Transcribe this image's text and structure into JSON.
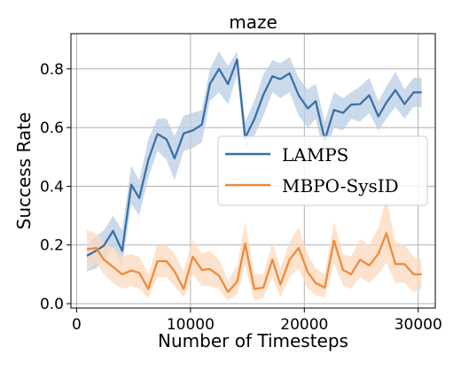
{
  "chart_data": {
    "type": "line",
    "title": "maze",
    "xlabel": "Number of Timesteps",
    "ylabel": "Success Rate",
    "xlim": [
      -500,
      31500
    ],
    "ylim": [
      -0.015,
      0.92
    ],
    "xticks": [
      0,
      10000,
      20000,
      30000
    ],
    "yticks": [
      0.0,
      0.2,
      0.4,
      0.6,
      0.8
    ],
    "xtick_labels": [
      "0",
      "10000",
      "20000",
      "30000"
    ],
    "ytick_labels": [
      "0.0",
      "0.2",
      "0.4",
      "0.6",
      "0.8"
    ],
    "grid": true,
    "legend_position": "center-right",
    "series": [
      {
        "name": "LAMPS",
        "color": "#3a70a8",
        "band_color": "#b9cde3",
        "x": [
          900,
          1700,
          2400,
          3200,
          4000,
          4800,
          5500,
          6300,
          7100,
          7900,
          8600,
          9400,
          10200,
          11000,
          11700,
          12500,
          13300,
          14100,
          14800,
          15600,
          16400,
          17200,
          17900,
          18700,
          19500,
          20300,
          21000,
          21800,
          22600,
          23400,
          24100,
          24900,
          25700,
          26500,
          27200,
          28000,
          28800,
          29600,
          30300
        ],
        "y": [
          0.163,
          0.18,
          0.198,
          0.248,
          0.18,
          0.405,
          0.36,
          0.49,
          0.578,
          0.56,
          0.495,
          0.58,
          0.59,
          0.61,
          0.748,
          0.8,
          0.748,
          0.832,
          0.565,
          0.628,
          0.712,
          0.775,
          0.765,
          0.785,
          0.71,
          0.665,
          0.69,
          0.558,
          0.66,
          0.65,
          0.678,
          0.68,
          0.71,
          0.638,
          0.685,
          0.728,
          0.68,
          0.72,
          0.72
        ],
        "lower": [
          0.11,
          0.12,
          0.15,
          0.19,
          0.13,
          0.34,
          0.3,
          0.43,
          0.52,
          0.49,
          0.42,
          0.52,
          0.53,
          0.55,
          0.69,
          0.72,
          0.68,
          0.78,
          0.52,
          0.57,
          0.64,
          0.72,
          0.7,
          0.72,
          0.64,
          0.6,
          0.63,
          0.5,
          0.6,
          0.59,
          0.63,
          0.62,
          0.65,
          0.59,
          0.63,
          0.67,
          0.63,
          0.67,
          0.67
        ],
        "upper": [
          0.2,
          0.23,
          0.25,
          0.3,
          0.25,
          0.47,
          0.42,
          0.56,
          0.63,
          0.63,
          0.57,
          0.64,
          0.65,
          0.66,
          0.8,
          0.86,
          0.81,
          0.86,
          0.62,
          0.69,
          0.78,
          0.83,
          0.82,
          0.84,
          0.77,
          0.73,
          0.75,
          0.62,
          0.72,
          0.7,
          0.72,
          0.74,
          0.77,
          0.69,
          0.74,
          0.79,
          0.73,
          0.77,
          0.77
        ]
      },
      {
        "name": "MBPO-SysID",
        "color": "#f08a3a",
        "band_color": "#fcd9bd",
        "x": [
          900,
          1700,
          2400,
          3200,
          4000,
          4800,
          5500,
          6300,
          7100,
          7900,
          8600,
          9400,
          10200,
          11000,
          11700,
          12500,
          13300,
          14100,
          14800,
          15600,
          16400,
          17200,
          17900,
          18700,
          19500,
          20300,
          21000,
          21800,
          22600,
          23400,
          24100,
          24900,
          25700,
          26500,
          27200,
          28000,
          28800,
          29600,
          30300
        ],
        "y": [
          0.185,
          0.19,
          0.15,
          0.125,
          0.1,
          0.113,
          0.105,
          0.05,
          0.145,
          0.145,
          0.11,
          0.05,
          0.16,
          0.115,
          0.118,
          0.095,
          0.04,
          0.075,
          0.205,
          0.05,
          0.055,
          0.15,
          0.065,
          0.15,
          0.19,
          0.107,
          0.07,
          0.055,
          0.215,
          0.115,
          0.1,
          0.15,
          0.13,
          0.17,
          0.24,
          0.135,
          0.135,
          0.1,
          0.1
        ],
        "lower": [
          0.11,
          0.14,
          0.1,
          0.07,
          0.05,
          0.06,
          0.05,
          0.02,
          0.09,
          0.09,
          0.06,
          0.02,
          0.1,
          0.06,
          0.06,
          0.05,
          0.01,
          0.03,
          0.13,
          0.01,
          0.02,
          0.09,
          0.02,
          0.09,
          0.12,
          0.05,
          0.03,
          0.02,
          0.14,
          0.06,
          0.05,
          0.09,
          0.07,
          0.1,
          0.14,
          0.07,
          0.07,
          0.04,
          0.05
        ],
        "upper": [
          0.25,
          0.24,
          0.21,
          0.19,
          0.16,
          0.17,
          0.16,
          0.1,
          0.2,
          0.2,
          0.17,
          0.11,
          0.22,
          0.17,
          0.18,
          0.15,
          0.08,
          0.13,
          0.28,
          0.1,
          0.1,
          0.21,
          0.12,
          0.21,
          0.26,
          0.17,
          0.12,
          0.1,
          0.28,
          0.17,
          0.16,
          0.22,
          0.2,
          0.26,
          0.36,
          0.21,
          0.2,
          0.16,
          0.15
        ]
      }
    ]
  }
}
